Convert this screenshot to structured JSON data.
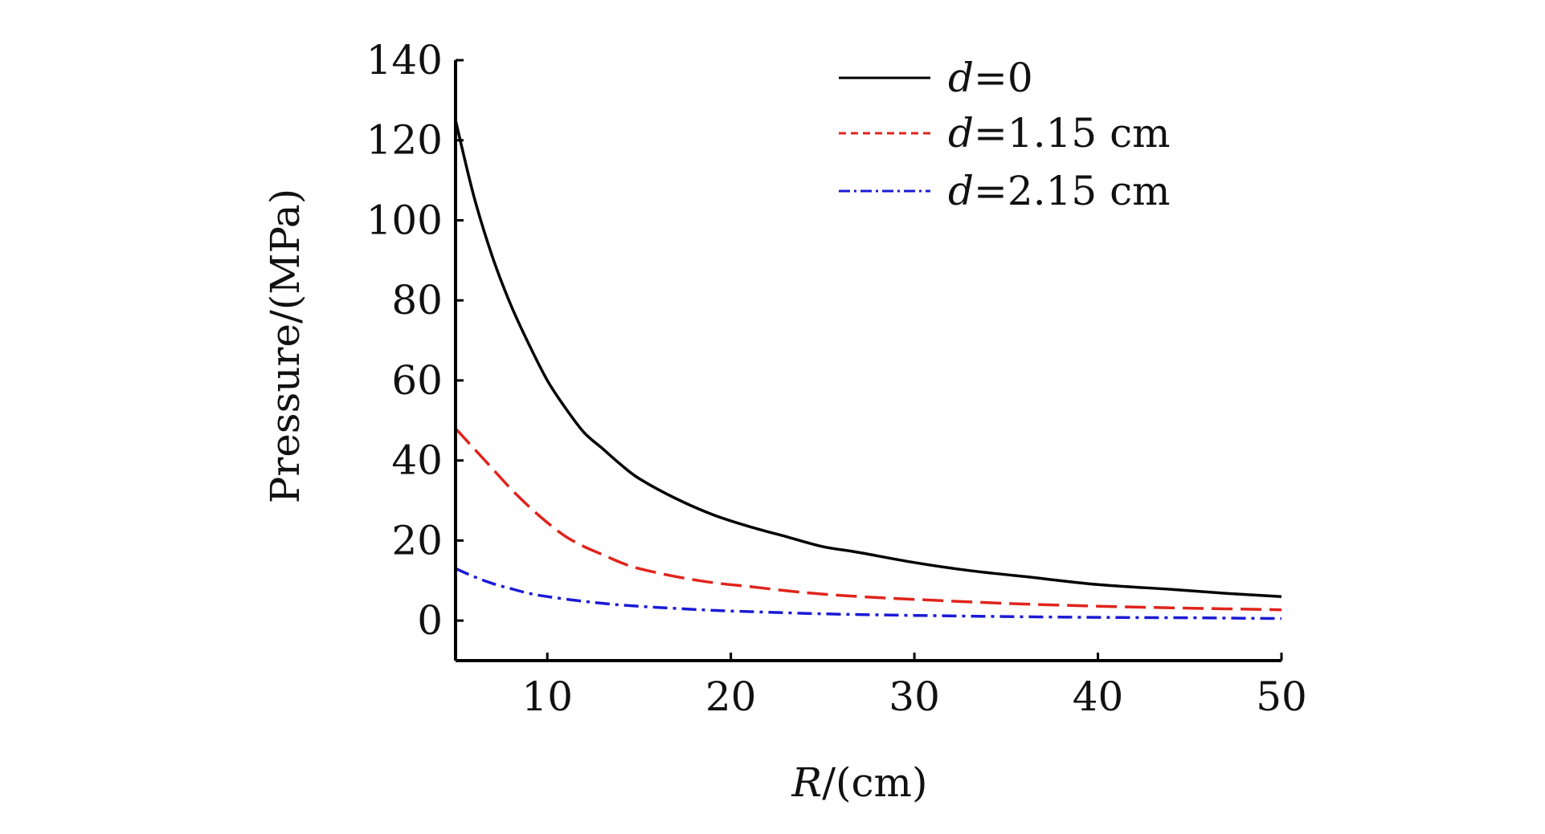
{
  "chart_data": {
    "type": "line",
    "title": "",
    "xlabel": {
      "var": "R",
      "rest": "/(cm)"
    },
    "ylabel": "Pressure/(MPa)",
    "xlim": [
      5,
      50
    ],
    "ylim": [
      -10,
      140
    ],
    "xticks": [
      10,
      20,
      30,
      40,
      50
    ],
    "yticks": [
      0,
      20,
      40,
      60,
      80,
      100,
      120,
      140
    ],
    "grid": false,
    "legend_position": "top-right",
    "series": [
      {
        "name": "d=0",
        "legend": {
          "var": "d",
          "rest": "=0"
        },
        "color": "#000000",
        "style": "solid",
        "x": [
          5,
          6,
          7,
          8,
          9,
          10,
          11,
          12,
          13,
          14,
          15,
          17,
          19,
          21,
          23,
          25,
          27,
          30,
          33,
          36,
          40,
          44,
          47,
          50
        ],
        "y": [
          125,
          106,
          91,
          79,
          69,
          60,
          53,
          47,
          43,
          39,
          35.5,
          30.5,
          26.5,
          23.5,
          21,
          18.5,
          17,
          14.5,
          12.5,
          11,
          9,
          7.8,
          6.8,
          6
        ]
      },
      {
        "name": "d=1.15 cm",
        "legend": {
          "var": "d",
          "rest": "=1.15 cm"
        },
        "color": "#e0241c",
        "style": "dashed",
        "x": [
          5,
          6,
          7,
          8,
          9,
          10,
          11,
          12,
          13,
          14,
          15,
          17,
          19,
          21,
          24,
          27,
          30,
          35,
          40,
          45,
          50
        ],
        "y": [
          48,
          43,
          38,
          33,
          28.5,
          24.5,
          21,
          18.5,
          16.5,
          14.5,
          13,
          11,
          9.5,
          8.5,
          7,
          6,
          5.3,
          4.3,
          3.6,
          3.1,
          2.7
        ]
      },
      {
        "name": "d=2.15 cm",
        "legend": {
          "var": "d",
          "rest": "=2.15 cm"
        },
        "color": "#1a1ad6",
        "style": "dashdot",
        "x": [
          5,
          6,
          7,
          8,
          9,
          10,
          12,
          14,
          16,
          18,
          20,
          25,
          30,
          35,
          40,
          45,
          50
        ],
        "y": [
          13,
          11,
          9.3,
          8,
          6.8,
          6,
          4.8,
          3.9,
          3.3,
          2.8,
          2.4,
          1.7,
          1.3,
          1,
          0.8,
          0.7,
          0.5
        ]
      }
    ]
  }
}
